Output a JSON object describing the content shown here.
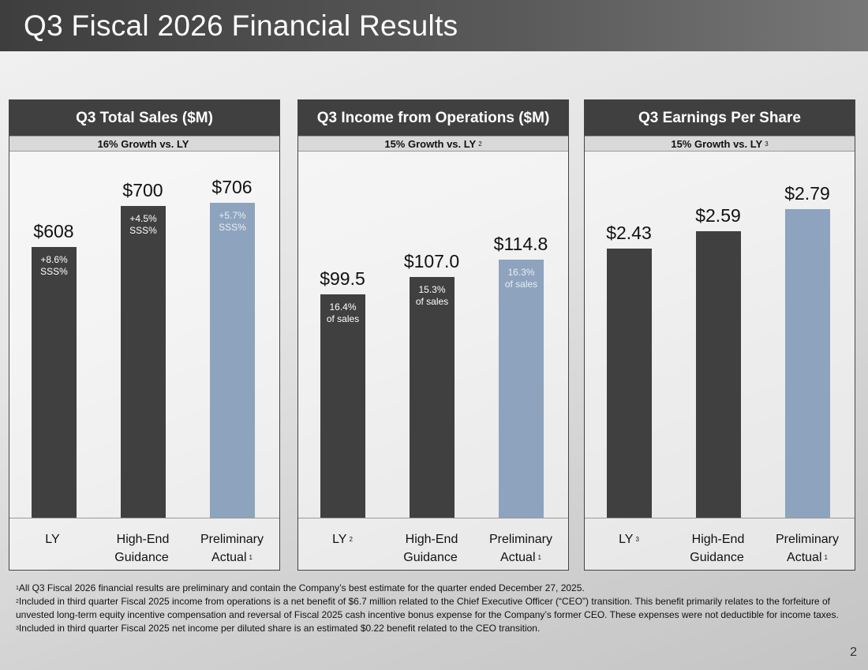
{
  "title": "Q3 Fiscal 2026 Financial Results",
  "page_number": "2",
  "colors": {
    "header": "#404040",
    "bar_dark": "#404040",
    "bar_highlight": "#8ea3bd",
    "subheader": "#d9d9d9"
  },
  "chart_data": [
    {
      "type": "bar",
      "title": "Q3 Total Sales ($M)",
      "subtitle": "16% Growth vs. LY",
      "subtitle_note": "",
      "ylim": [
        0,
        822
      ],
      "categories": [
        {
          "line1": "LY",
          "line2": "",
          "note": ""
        },
        {
          "line1": "High-End",
          "line2": "Guidance",
          "note": ""
        },
        {
          "line1": "Preliminary",
          "line2": "Actual",
          "note": "1"
        }
      ],
      "values": [
        608,
        700,
        706
      ],
      "value_labels": [
        "$608",
        "$700",
        "$706"
      ],
      "inner_labels": [
        [
          "+8.6%",
          "SSS%"
        ],
        [
          "+4.5%",
          "SSS%"
        ],
        [
          "+5.7%",
          "SSS%"
        ]
      ],
      "highlight": [
        false,
        false,
        true
      ]
    },
    {
      "type": "bar",
      "title": "Q3 Income from Operations ($M)",
      "subtitle": "15% Growth vs. LY",
      "subtitle_note": "2",
      "ylim": [
        0,
        163
      ],
      "categories": [
        {
          "line1": "LY",
          "line2": "",
          "note": "2"
        },
        {
          "line1": "High-End",
          "line2": "Guidance",
          "note": ""
        },
        {
          "line1": "Preliminary",
          "line2": "Actual",
          "note": "1"
        }
      ],
      "values": [
        99.5,
        107.0,
        114.8
      ],
      "value_labels": [
        "$99.5",
        "$107.0",
        "$114.8"
      ],
      "inner_labels": [
        [
          "16.4%",
          "of sales"
        ],
        [
          "15.3%",
          "of sales"
        ],
        [
          "16.3%",
          "of sales"
        ]
      ],
      "highlight": [
        false,
        false,
        true
      ]
    },
    {
      "type": "bar",
      "title": "Q3 Earnings Per Share",
      "subtitle": "15% Growth vs. LY",
      "subtitle_note": "3",
      "ylim": [
        0,
        3.31
      ],
      "categories": [
        {
          "line1": "LY",
          "line2": "",
          "note": "3"
        },
        {
          "line1": "High-End",
          "line2": "Guidance",
          "note": ""
        },
        {
          "line1": "Preliminary",
          "line2": "Actual",
          "note": "1"
        }
      ],
      "values": [
        2.43,
        2.59,
        2.79
      ],
      "value_labels": [
        "$2.43",
        "$2.59",
        "$2.79"
      ],
      "inner_labels": [
        [],
        [],
        []
      ],
      "highlight": [
        false,
        false,
        true
      ]
    }
  ],
  "footnotes": [
    {
      "mark": "1",
      "text": "All Q3 Fiscal 2026 financial results are preliminary and contain the Company’s best estimate for the quarter ended December 27, 2025."
    },
    {
      "mark": "2",
      "text": "Included in third quarter Fiscal 2025 income from operations is a net benefit of $6.7 million related to the Chief Executive Officer (“CEO”) transition. This benefit primarily relates to the forfeiture of unvested long-term equity incentive compensation and reversal of Fiscal 2025 cash incentive bonus expense for the Company’s former CEO. These expenses were not deductible for income taxes."
    },
    {
      "mark": "3",
      "text": "Included in third quarter Fiscal 2025 net income per diluted share is an estimated $0.22 benefit related to the CEO transition."
    }
  ]
}
